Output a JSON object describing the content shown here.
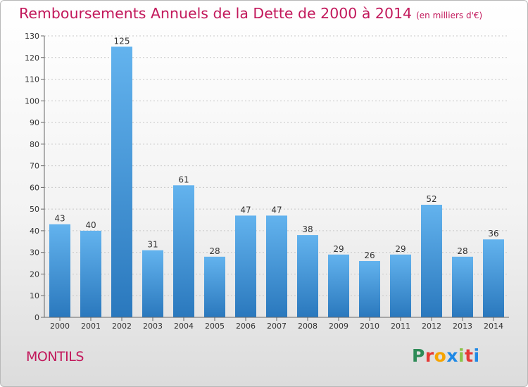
{
  "header": {
    "title": "Remboursements Annuels de la Dette de 2000 à 2014",
    "unit": "(en milliers d'€)"
  },
  "footer": {
    "commune": "MONTILS",
    "logo": "Proxiti"
  },
  "colors": {
    "title": "#c2185b",
    "bar_top": "#63b3ee",
    "bar_bottom": "#2a78bd"
  },
  "chart_data": {
    "type": "bar",
    "title": "Remboursements Annuels de la Dette de 2000 à 2014",
    "subtitle": "(en milliers d'€)",
    "xlabel": "",
    "ylabel": "",
    "categories": [
      "2000",
      "2001",
      "2002",
      "2003",
      "2004",
      "2005",
      "2006",
      "2007",
      "2008",
      "2009",
      "2010",
      "2011",
      "2012",
      "2013",
      "2014"
    ],
    "values": [
      43,
      40,
      125,
      31,
      61,
      28,
      47,
      47,
      38,
      29,
      26,
      29,
      52,
      28,
      36
    ],
    "ylim": [
      0,
      130
    ],
    "yticks": [
      0,
      10,
      20,
      30,
      40,
      50,
      60,
      70,
      80,
      90,
      100,
      110,
      120,
      130
    ],
    "grid": true,
    "data_labels": true
  }
}
